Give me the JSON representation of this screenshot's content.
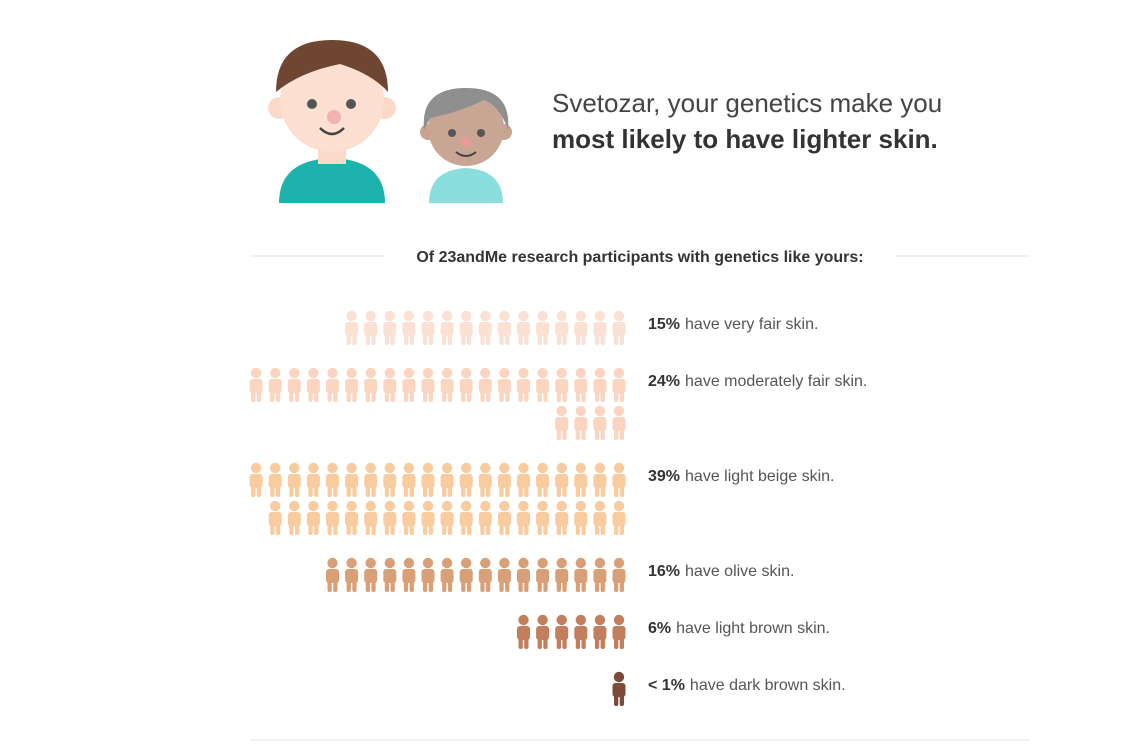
{
  "chart_data": {
    "type": "pictograph",
    "title": "Svetozar, your genetics make you",
    "title_emphasis": "most likely to have lighter skin.",
    "subtitle": "Of 23andMe research participants with genetics like yours:",
    "categories": [
      "have very fair skin.",
      "have moderately fair skin.",
      "have light beige skin.",
      "have olive skin.",
      "have light brown skin.",
      "have dark brown skin."
    ],
    "values": [
      15,
      24,
      39,
      16,
      6,
      0.5
    ],
    "value_labels": [
      "15%",
      "24%",
      "39%",
      "16%",
      "6%",
      "< 1%"
    ],
    "colors": [
      "#fbe0d4",
      "#fbd5c0",
      "#f8cc9e",
      "#d9a078",
      "#c27e5d",
      "#7b4a38"
    ]
  }
}
